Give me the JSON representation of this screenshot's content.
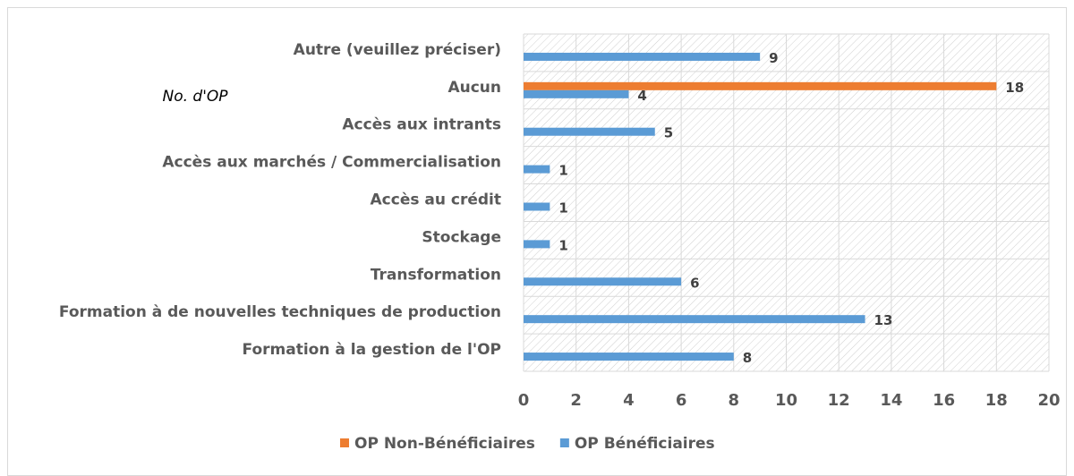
{
  "chart_data": {
    "type": "hbar",
    "y_label": "No. d'OP",
    "categories": [
      "Autre (veuillez préciser)",
      "Aucun",
      "Accès aux intrants",
      "Accès aux marchés / Commercialisation",
      "Accès au crédit",
      "Stockage",
      "Transformation",
      "Formation à de nouvelles techniques de production",
      "Formation à la gestion de l'OP"
    ],
    "series": [
      {
        "name": "OP Non-Bénéficiaires",
        "color": "#ed7d31",
        "values": [
          null,
          18,
          null,
          null,
          null,
          null,
          null,
          null,
          null
        ]
      },
      {
        "name": "OP Bénéficiaires",
        "color": "#5b9bd5",
        "values": [
          9,
          4,
          5,
          1,
          1,
          1,
          6,
          13,
          8
        ]
      }
    ],
    "xlim": [
      0,
      20
    ],
    "xticks": [
      0,
      2,
      4,
      6,
      8,
      10,
      12,
      14,
      16,
      18,
      20
    ],
    "grid": true,
    "legend": "bottom"
  }
}
